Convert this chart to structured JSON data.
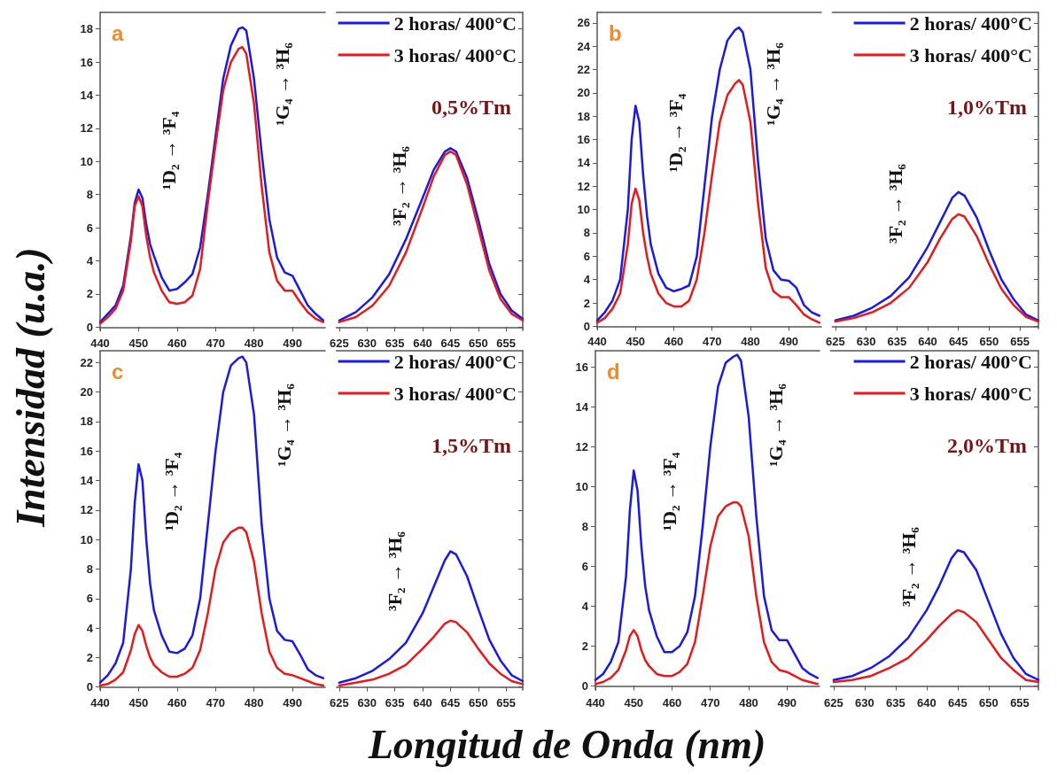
{
  "chart_data": [
    {
      "type": "line",
      "title": "a",
      "ylabel": "Intensidad (u.a.)",
      "xlabel": "Longitud de Onda (nm)",
      "x": [
        440,
        442,
        444,
        446,
        448,
        449,
        450,
        451,
        452,
        453,
        454,
        456,
        458,
        460,
        462,
        464,
        466,
        468,
        470,
        472,
        474,
        476,
        477,
        478,
        480,
        482,
        484,
        486,
        488,
        490,
        492,
        494,
        496,
        498
      ],
      "xlim": [
        440,
        498.5
      ],
      "xticks": [
        440,
        450,
        460,
        470,
        480,
        490
      ],
      "ylim": [
        -0.2,
        19
      ],
      "yticks": [
        0,
        2,
        4,
        6,
        8,
        10,
        12,
        14,
        16,
        18
      ],
      "series": [
        {
          "color": "#1a1ae6",
          "values": [
            0.3,
            0.8,
            1.3,
            2.5,
            5.5,
            7.5,
            8.3,
            7.8,
            6.2,
            5,
            4.3,
            3.0,
            2.2,
            2.3,
            2.7,
            3.2,
            4.8,
            8,
            11.5,
            15,
            17,
            18,
            18.1,
            17.9,
            15,
            10.5,
            6.5,
            4.2,
            3.3,
            3.1,
            2.2,
            1.3,
            0.8,
            0.4
          ]
        },
        {
          "color": "#e61a1a",
          "values": [
            0.2,
            0.6,
            1.1,
            2.2,
            5.2,
            7.3,
            7.9,
            7.3,
            5.5,
            4.2,
            3.3,
            2.2,
            1.5,
            1.4,
            1.5,
            1.9,
            3.5,
            7.5,
            11,
            14.3,
            16,
            16.8,
            16.9,
            16.5,
            13.5,
            8.5,
            4.5,
            2.8,
            2.2,
            2.2,
            1.5,
            0.9,
            0.5,
            0.3
          ]
        }
      ],
      "annotations": [
        "¹D₂ → ³F₄",
        "¹G₄ → ³H₆"
      ]
    },
    {
      "type": "line",
      "subtitle": "0,5%Tm",
      "legend": "top right",
      "tick_labels": "x",
      "x": [
        625,
        628,
        631,
        634,
        637,
        640,
        642,
        644,
        645,
        646,
        648,
        650,
        652,
        654,
        656,
        658
      ],
      "xlim": [
        624.5,
        658
      ],
      "xticks": [
        625,
        630,
        635,
        640,
        645,
        650,
        655
      ],
      "ylim": [
        -0.2,
        19
      ],
      "yticks": [
        0,
        2,
        4,
        6,
        8,
        10,
        12,
        14,
        16,
        18
      ],
      "series": [
        {
          "name": "2 horas/ 400°C",
          "color": "#1a1ae6",
          "values": [
            0.4,
            0.9,
            1.8,
            3.2,
            5.3,
            7.8,
            9.5,
            10.6,
            10.8,
            10.6,
            9,
            6.5,
            3.8,
            2,
            1,
            0.5
          ]
        },
        {
          "name": "3 horas/ 400°C",
          "color": "#e61a1a",
          "values": [
            0.3,
            0.6,
            1.3,
            2.5,
            4.5,
            7.2,
            9.1,
            10.4,
            10.6,
            10.4,
            8.6,
            6,
            3.4,
            1.7,
            0.8,
            0.4
          ]
        }
      ],
      "annotations": [
        "³F₂ → ³H₆"
      ]
    },
    {
      "type": "line",
      "title": "b",
      "x": [
        440,
        442,
        444,
        446,
        448,
        449,
        450,
        451,
        452,
        453,
        454,
        456,
        458,
        460,
        462,
        464,
        466,
        468,
        470,
        472,
        474,
        476,
        477,
        478,
        480,
        482,
        484,
        486,
        488,
        490,
        492,
        494,
        496,
        498
      ],
      "xlim": [
        440,
        498.5
      ],
      "xticks": [
        440,
        450,
        460,
        470,
        480,
        490
      ],
      "ylim": [
        -0.2,
        26.9
      ],
      "yticks": [
        0,
        2,
        4,
        6,
        8,
        10,
        12,
        14,
        16,
        18,
        20,
        22,
        24,
        26
      ],
      "series": [
        {
          "color": "#1a1ae6",
          "values": [
            0.5,
            1.2,
            2.2,
            4,
            10,
            16,
            18.9,
            17.5,
            13,
            9.5,
            7,
            4.5,
            3.3,
            3.0,
            3.2,
            3.5,
            6,
            12,
            18,
            22,
            24.5,
            25.4,
            25.6,
            25.2,
            22,
            14,
            7.5,
            4.8,
            4,
            3.9,
            3.3,
            1.8,
            1.2,
            0.9
          ]
        },
        {
          "color": "#e61a1a",
          "values": [
            0.3,
            0.7,
            1.5,
            2.8,
            7,
            10.5,
            11.8,
            10.8,
            8,
            6,
            4.5,
            2.8,
            2,
            1.7,
            1.7,
            2.2,
            4,
            8,
            13,
            17.5,
            19.8,
            20.8,
            21.1,
            20.7,
            17.5,
            10.5,
            5,
            3,
            2.5,
            2.5,
            1.8,
            1,
            0.6,
            0.3
          ]
        }
      ],
      "annotations": [
        "¹D₂ → ³F₄",
        "¹G₄ → ³H₆"
      ]
    },
    {
      "type": "line",
      "subtitle": "1,0%Tm",
      "legend": "top right",
      "tick_labels": "x",
      "x": [
        625,
        628,
        631,
        634,
        637,
        640,
        642,
        644,
        645,
        646,
        648,
        650,
        652,
        654,
        656,
        658
      ],
      "xlim": [
        624.5,
        658
      ],
      "xticks": [
        625,
        630,
        635,
        640,
        645,
        650,
        655
      ],
      "ylim": [
        -0.2,
        26.9
      ],
      "yticks": [
        0,
        2,
        4,
        6,
        8,
        10,
        12,
        14,
        16,
        18,
        20,
        22,
        24,
        26
      ],
      "series": [
        {
          "name": "2 horas/ 400°C",
          "color": "#1a1ae6",
          "values": [
            0.5,
            0.9,
            1.6,
            2.6,
            4.2,
            6.8,
            8.9,
            11,
            11.5,
            11.2,
            9.3,
            6.5,
            4,
            2.3,
            1,
            0.5
          ]
        },
        {
          "name": "3 horas/ 400°C",
          "color": "#e61a1a",
          "values": [
            0.4,
            0.7,
            1.2,
            2,
            3.3,
            5.5,
            7.5,
            9.2,
            9.6,
            9.4,
            7.7,
            5.3,
            3.2,
            1.8,
            0.8,
            0.4
          ]
        }
      ],
      "annotations": [
        "³F₂ → ³H₆"
      ]
    },
    {
      "type": "line",
      "title": "c",
      "x": [
        440,
        442,
        444,
        446,
        448,
        449,
        450,
        451,
        452,
        453,
        454,
        456,
        458,
        460,
        462,
        464,
        466,
        468,
        470,
        472,
        474,
        476,
        477,
        478,
        480,
        482,
        484,
        486,
        488,
        490,
        492,
        494,
        496,
        498
      ],
      "xlim": [
        440,
        498.5
      ],
      "xticks": [
        440,
        450,
        460,
        470,
        480,
        490
      ],
      "ylim": [
        -0.2,
        22.8
      ],
      "yticks": [
        0,
        2,
        4,
        6,
        8,
        10,
        12,
        14,
        16,
        18,
        20,
        22
      ],
      "series": [
        {
          "color": "#1a1ae6",
          "values": [
            0.3,
            0.8,
            1.6,
            3,
            8,
            12.5,
            15.1,
            14,
            10,
            7,
            5.2,
            3.5,
            2.4,
            2.3,
            2.6,
            3.5,
            6,
            11,
            16,
            20,
            21.8,
            22.3,
            22.4,
            22,
            18.5,
            11,
            6,
            3.8,
            3.2,
            3.1,
            2.2,
            1.2,
            0.8,
            0.6
          ]
        },
        {
          "color": "#e61a1a",
          "values": [
            0.1,
            0.2,
            0.5,
            1,
            2.5,
            3.6,
            4.2,
            3.8,
            2.8,
            2,
            1.5,
            1,
            0.7,
            0.7,
            0.9,
            1.3,
            2.5,
            5,
            8,
            9.8,
            10.5,
            10.8,
            10.8,
            10.5,
            8.5,
            5,
            2.4,
            1.3,
            0.9,
            0.8,
            0.6,
            0.4,
            0.2,
            0.1
          ]
        }
      ],
      "annotations": [
        "¹D₂ → ³F₄",
        "¹G₄ → ³H₆"
      ]
    },
    {
      "type": "line",
      "subtitle": "1,5%Tm",
      "legend": "top right",
      "tick_labels": "x",
      "x": [
        625,
        628,
        631,
        634,
        637,
        640,
        642,
        644,
        645,
        646,
        648,
        650,
        652,
        654,
        656,
        658
      ],
      "xlim": [
        624.5,
        658
      ],
      "xticks": [
        625,
        630,
        635,
        640,
        645,
        650,
        655
      ],
      "ylim": [
        -0.2,
        22.8
      ],
      "yticks": [
        0,
        2,
        4,
        6,
        8,
        10,
        12,
        14,
        16,
        18,
        20,
        22
      ],
      "series": [
        {
          "name": "2 horas/ 400°C",
          "color": "#1a1ae6",
          "values": [
            0.3,
            0.6,
            1.1,
            1.9,
            3,
            5,
            6.8,
            8.6,
            9.2,
            9,
            7.5,
            5.3,
            3.2,
            1.8,
            0.8,
            0.4
          ]
        },
        {
          "name": "3 horas/ 400°C",
          "color": "#e61a1a",
          "values": [
            0.1,
            0.3,
            0.5,
            0.9,
            1.5,
            2.6,
            3.4,
            4.3,
            4.5,
            4.4,
            3.7,
            2.6,
            1.6,
            0.9,
            0.4,
            0.2
          ]
        }
      ],
      "annotations": [
        "³F₂ → ³H₆"
      ]
    },
    {
      "type": "line",
      "title": "d",
      "x": [
        440,
        442,
        444,
        446,
        448,
        449,
        450,
        451,
        452,
        453,
        454,
        456,
        458,
        460,
        462,
        464,
        466,
        468,
        470,
        472,
        474,
        476,
        477,
        478,
        480,
        482,
        484,
        486,
        488,
        490,
        492,
        494,
        496,
        498
      ],
      "xlim": [
        440,
        498.5
      ],
      "xticks": [
        440,
        450,
        460,
        470,
        480,
        490
      ],
      "ylim": [
        -0.2,
        16.8
      ],
      "yticks": [
        0,
        2,
        4,
        6,
        8,
        10,
        12,
        14,
        16
      ],
      "series": [
        {
          "color": "#1a1ae6",
          "values": [
            0.3,
            0.6,
            1.2,
            2.2,
            5.5,
            8.8,
            10.8,
            9.8,
            7,
            5,
            3.8,
            2.5,
            1.7,
            1.7,
            2,
            2.7,
            4.5,
            8,
            12,
            15,
            16.2,
            16.5,
            16.6,
            16.3,
            13.5,
            8.5,
            4.5,
            2.8,
            2.3,
            2.3,
            1.6,
            0.9,
            0.6,
            0.4
          ]
        },
        {
          "color": "#e61a1a",
          "values": [
            0.1,
            0.2,
            0.4,
            0.8,
            1.8,
            2.5,
            2.8,
            2.5,
            1.8,
            1.3,
            1,
            0.6,
            0.5,
            0.5,
            0.7,
            1.1,
            2.2,
            4.5,
            7,
            8.5,
            9,
            9.2,
            9.2,
            9,
            7.5,
            4.5,
            2.2,
            1.2,
            0.8,
            0.7,
            0.5,
            0.3,
            0.2,
            0.1
          ]
        }
      ],
      "annotations": [
        "¹D₂ → ³F₄",
        "¹G₄ → ³H₆"
      ]
    },
    {
      "type": "line",
      "subtitle": "2,0%Tm",
      "legend": "top right",
      "tick_labels": "x",
      "x": [
        625,
        628,
        631,
        634,
        637,
        640,
        642,
        644,
        645,
        646,
        648,
        650,
        652,
        654,
        656,
        658
      ],
      "xlim": [
        624.5,
        658
      ],
      "xticks": [
        625,
        630,
        635,
        640,
        645,
        650,
        655
      ],
      "ylim": [
        -0.2,
        16.8
      ],
      "yticks": [
        0,
        2,
        4,
        6,
        8,
        10,
        12,
        14,
        16
      ],
      "series": [
        {
          "name": "2 horas/ 400°C",
          "color": "#1a1ae6",
          "values": [
            0.3,
            0.5,
            0.9,
            1.5,
            2.4,
            3.8,
            5,
            6.4,
            6.8,
            6.7,
            5.8,
            4.2,
            2.6,
            1.4,
            0.6,
            0.3
          ]
        },
        {
          "name": "3 horas/ 400°C",
          "color": "#e61a1a",
          "values": [
            0.2,
            0.3,
            0.5,
            0.9,
            1.4,
            2.3,
            3,
            3.6,
            3.8,
            3.7,
            3.2,
            2.3,
            1.4,
            0.8,
            0.3,
            0.2
          ]
        }
      ],
      "annotations": [
        "³F₂ → ³H₆"
      ]
    }
  ]
}
